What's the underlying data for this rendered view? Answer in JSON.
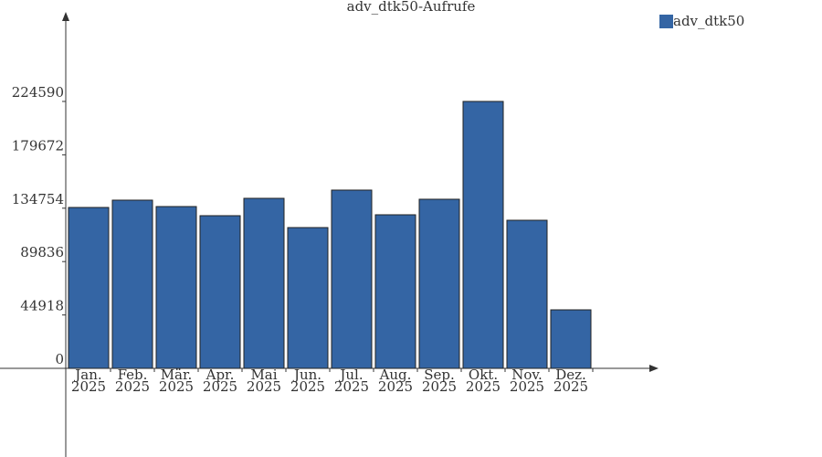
{
  "chart_data": {
    "type": "bar",
    "title": "adv_dtk50-Aufrufe",
    "categories": [
      "Jan. 2025",
      "Feb. 2025",
      "Mär. 2025",
      "Apr. 2025",
      "Mai 2025",
      "Jun. 2025",
      "Jul. 2025",
      "Aug. 2025",
      "Sep. 2025",
      "Okt. 2025",
      "Nov. 2025",
      "Dez. 2025"
    ],
    "series": [
      {
        "name": "adv_dtk50",
        "color": "#3465a4",
        "values": [
          135370,
          141523,
          136139,
          128448,
          143061,
          118448,
          149984,
          129217,
          142292,
          224590,
          124602,
          49225
        ]
      }
    ],
    "ylim": [
      -74600,
      298400
    ],
    "yticks": [
      0,
      44918,
      89836,
      134754,
      179672,
      224590
    ],
    "legend": "top-right"
  }
}
